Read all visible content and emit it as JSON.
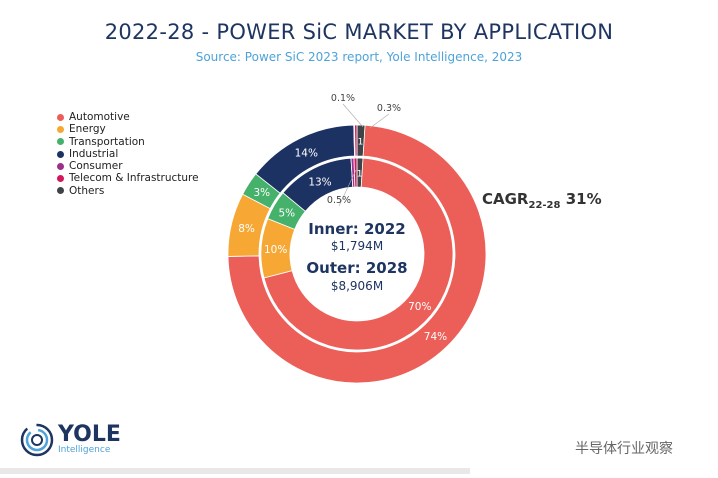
{
  "title": "2022-28 - POWER SiC MARKET BY APPLICATION",
  "subtitle": "Source: Power SiC 2023 report, Yole Intelligence, 2023",
  "chart_data": {
    "type": "pie",
    "title": "2022-28 - POWER SiC MARKET BY APPLICATION",
    "legend_position": "left",
    "categories": [
      "Automotive",
      "Energy",
      "Transportation",
      "Industrial",
      "Consumer",
      "Telecom & Infrastructure",
      "Others"
    ],
    "colors": [
      "#ec5f59",
      "#f6a734",
      "#46b16b",
      "#1c3262",
      "#9b2f8a",
      "#d3175a",
      "#3e4347"
    ],
    "series": [
      {
        "name": "Inner: 2022",
        "total": "$1,794M",
        "values": [
          70,
          10,
          5,
          13,
          0.5,
          0.5,
          1
        ],
        "labels": [
          "70%",
          "10%",
          "5%",
          "13%",
          "0.5%",
          "",
          "1"
        ]
      },
      {
        "name": "Outer: 2028",
        "total": "$8,906M",
        "values": [
          74,
          8,
          3,
          14,
          0.1,
          0.3,
          1
        ],
        "labels": [
          "74%",
          "8%",
          "3%",
          "14%",
          "0.1%",
          "0.3%",
          "1"
        ]
      }
    ],
    "annotation": {
      "cagr_label": "CAGR",
      "cagr_sub": "22-28",
      "cagr_value": "31%"
    }
  },
  "logo": {
    "name": "YOLE",
    "sub": "Intelligence"
  },
  "watermark": "半导体行业观察"
}
